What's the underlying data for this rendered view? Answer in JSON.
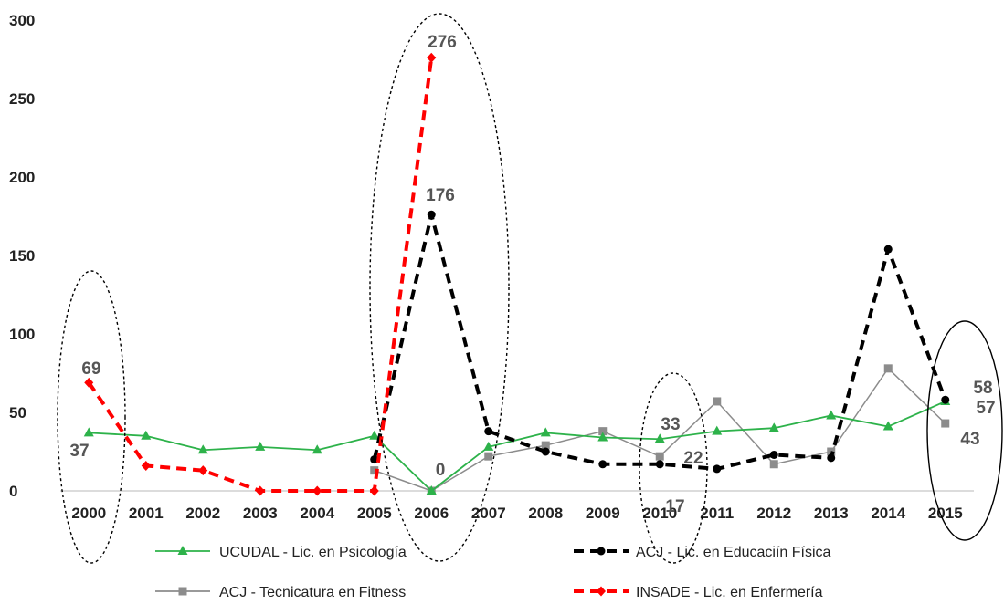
{
  "chart_data": {
    "type": "line",
    "title": "",
    "xlabel": "",
    "ylabel": "",
    "ylim": [
      0,
      300
    ],
    "yticks": [
      "0",
      "50",
      "100",
      "150",
      "200",
      "250",
      "300"
    ],
    "categories": [
      "2000",
      "2001",
      "2002",
      "2003",
      "2004",
      "2005",
      "2006",
      "2007",
      "2008",
      "2009",
      "2010",
      "2011",
      "2012",
      "2013",
      "2014",
      "2015"
    ],
    "grid": false,
    "legend_position": "bottom",
    "series": [
      {
        "name": "UCUDAL - Lic. en Psicología",
        "color": "#2db24a",
        "style": "solid",
        "marker": "triangle",
        "values": [
          37,
          35,
          26,
          28,
          26,
          35,
          0,
          28,
          37,
          34,
          33,
          38,
          40,
          48,
          41,
          57
        ]
      },
      {
        "name": "ACJ - Lic. en Educaciín Física",
        "color": "#000000",
        "style": "dashed",
        "marker": "circle",
        "values": [
          null,
          null,
          null,
          null,
          null,
          20,
          176,
          38,
          25,
          17,
          17,
          14,
          23,
          21,
          154,
          58
        ]
      },
      {
        "name": "ACJ - Tecnicatura en Fitness",
        "color": "#8c8c8c",
        "style": "solid",
        "marker": "square",
        "values": [
          null,
          null,
          null,
          null,
          null,
          13,
          0,
          22,
          29,
          38,
          22,
          57,
          17,
          25,
          78,
          43
        ]
      },
      {
        "name": "INSADE - Lic. en Enfermería",
        "color": "#ff0000",
        "style": "dashed",
        "marker": "diamond",
        "values": [
          69,
          16,
          13,
          0,
          0,
          0,
          276,
          null,
          null,
          null,
          null,
          null,
          null,
          null,
          null,
          null
        ]
      }
    ],
    "data_labels": [
      {
        "text": "69"
      },
      {
        "text": "37"
      },
      {
        "text": "276"
      },
      {
        "text": "176"
      },
      {
        "text": "0"
      },
      {
        "text": "33"
      },
      {
        "text": "22"
      },
      {
        "text": "17"
      },
      {
        "text": "58"
      },
      {
        "text": "57"
      },
      {
        "text": "43"
      }
    ]
  }
}
